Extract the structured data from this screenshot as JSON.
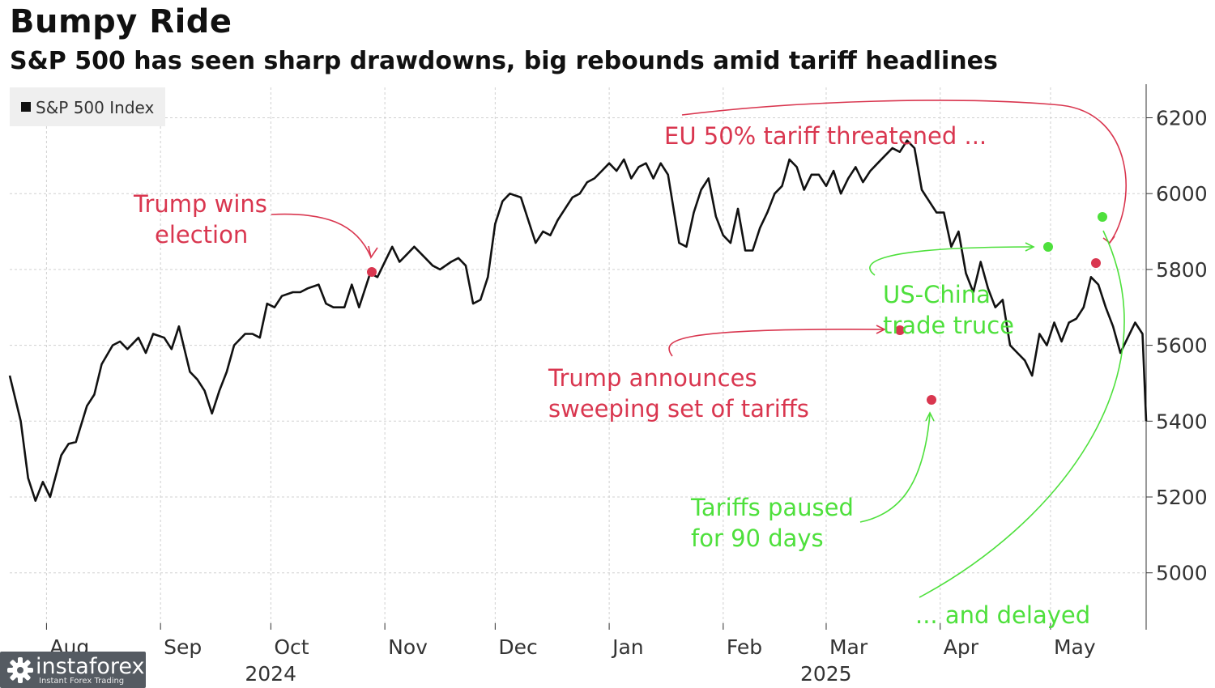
{
  "header": {
    "title": "Bumpy Ride",
    "subtitle": "S&P 500 has seen sharp drawdowns, big rebounds amid tariff headlines"
  },
  "watermark": {
    "brand": "instaforex",
    "tagline": "Instant Forex Trading"
  },
  "colors": {
    "line": "#111111",
    "negative": "#d9364f",
    "positive": "#4ee03c",
    "grid": "#d0d0d0"
  },
  "chart_data": {
    "type": "line",
    "title": "Bumpy Ride",
    "subtitle": "S&P 500 has seen sharp drawdowns, big rebounds amid tariff headlines",
    "legend": {
      "label": "S&P 500 Index",
      "placement": "top-left"
    },
    "grid": true,
    "ylim": [
      4850,
      6280
    ],
    "yticks": [
      5000,
      5200,
      5400,
      5600,
      5800,
      6000,
      6200
    ],
    "xlim": [
      "2024-07-22",
      "2025-05-27"
    ],
    "xticks": [
      {
        "label": "Aug",
        "date": "2024-08-01"
      },
      {
        "label": "Sep",
        "date": "2024-09-01"
      },
      {
        "label": "Oct",
        "date": "2024-10-01"
      },
      {
        "label": "Nov",
        "date": "2024-11-01"
      },
      {
        "label": "Dec",
        "date": "2024-12-01"
      },
      {
        "label": "Jan",
        "date": "2025-01-01"
      },
      {
        "label": "Feb",
        "date": "2025-02-01"
      },
      {
        "label": "Mar",
        "date": "2025-03-01"
      },
      {
        "label": "Apr",
        "date": "2025-04-01"
      },
      {
        "label": "May",
        "date": "2025-05-01"
      }
    ],
    "year_labels": [
      {
        "label": "2024",
        "date": "2024-10-01"
      },
      {
        "label": "2025",
        "date": "2025-03-01"
      }
    ],
    "series": [
      {
        "name": "S&P 500 Index",
        "points": [
          [
            "2024-07-22",
            5520
          ],
          [
            "2024-07-25",
            5400
          ],
          [
            "2024-07-27",
            5250
          ],
          [
            "2024-07-29",
            5190
          ],
          [
            "2024-07-31",
            5240
          ],
          [
            "2024-08-02",
            5200
          ],
          [
            "2024-08-05",
            5310
          ],
          [
            "2024-08-07",
            5340
          ],
          [
            "2024-08-09",
            5345
          ],
          [
            "2024-08-12",
            5440
          ],
          [
            "2024-08-14",
            5470
          ],
          [
            "2024-08-16",
            5550
          ],
          [
            "2024-08-19",
            5600
          ],
          [
            "2024-08-21",
            5610
          ],
          [
            "2024-08-23",
            5590
          ],
          [
            "2024-08-26",
            5620
          ],
          [
            "2024-08-28",
            5580
          ],
          [
            "2024-08-30",
            5630
          ],
          [
            "2024-09-02",
            5620
          ],
          [
            "2024-09-04",
            5590
          ],
          [
            "2024-09-06",
            5650
          ],
          [
            "2024-09-09",
            5530
          ],
          [
            "2024-09-11",
            5510
          ],
          [
            "2024-09-13",
            5480
          ],
          [
            "2024-09-15",
            5420
          ],
          [
            "2024-09-17",
            5480
          ],
          [
            "2024-09-19",
            5530
          ],
          [
            "2024-09-21",
            5600
          ],
          [
            "2024-09-24",
            5630
          ],
          [
            "2024-09-26",
            5630
          ],
          [
            "2024-09-28",
            5620
          ],
          [
            "2024-09-30",
            5710
          ],
          [
            "2024-10-02",
            5700
          ],
          [
            "2024-10-04",
            5730
          ],
          [
            "2024-10-07",
            5740
          ],
          [
            "2024-10-09",
            5740
          ],
          [
            "2024-10-11",
            5750
          ],
          [
            "2024-10-14",
            5760
          ],
          [
            "2024-10-16",
            5710
          ],
          [
            "2024-10-18",
            5700
          ],
          [
            "2024-10-21",
            5700
          ],
          [
            "2024-10-23",
            5760
          ],
          [
            "2024-10-25",
            5700
          ],
          [
            "2024-10-28",
            5790
          ],
          [
            "2024-10-30",
            5780
          ],
          [
            "2024-11-01",
            5820
          ],
          [
            "2024-11-03",
            5860
          ],
          [
            "2024-11-05",
            5820
          ],
          [
            "2024-11-07",
            5840
          ],
          [
            "2024-11-09",
            5860
          ],
          [
            "2024-11-12",
            5830
          ],
          [
            "2024-11-14",
            5810
          ],
          [
            "2024-11-16",
            5800
          ],
          [
            "2024-11-19",
            5820
          ],
          [
            "2024-11-21",
            5830
          ],
          [
            "2024-11-23",
            5810
          ],
          [
            "2024-11-25",
            5710
          ],
          [
            "2024-11-27",
            5720
          ],
          [
            "2024-11-29",
            5780
          ],
          [
            "2024-12-01",
            5920
          ],
          [
            "2024-12-03",
            5980
          ],
          [
            "2024-12-05",
            6000
          ],
          [
            "2024-12-08",
            5990
          ],
          [
            "2024-12-10",
            5930
          ],
          [
            "2024-12-12",
            5870
          ],
          [
            "2024-12-14",
            5900
          ],
          [
            "2024-12-16",
            5890
          ],
          [
            "2024-12-18",
            5930
          ],
          [
            "2024-12-20",
            5960
          ],
          [
            "2024-12-22",
            5990
          ],
          [
            "2024-12-24",
            6000
          ],
          [
            "2024-12-26",
            6030
          ],
          [
            "2024-12-28",
            6040
          ],
          [
            "2024-12-30",
            6060
          ],
          [
            "2025-01-01",
            6080
          ],
          [
            "2025-01-03",
            6060
          ],
          [
            "2025-01-05",
            6090
          ],
          [
            "2025-01-07",
            6040
          ],
          [
            "2025-01-09",
            6070
          ],
          [
            "2025-01-11",
            6080
          ],
          [
            "2025-01-13",
            6040
          ],
          [
            "2025-01-15",
            6080
          ],
          [
            "2025-01-17",
            6050
          ],
          [
            "2025-01-20",
            5870
          ],
          [
            "2025-01-22",
            5860
          ],
          [
            "2025-01-24",
            5950
          ],
          [
            "2025-01-26",
            6010
          ],
          [
            "2025-01-28",
            6040
          ],
          [
            "2025-01-30",
            5940
          ],
          [
            "2025-02-01",
            5890
          ],
          [
            "2025-02-03",
            5870
          ],
          [
            "2025-02-05",
            5960
          ],
          [
            "2025-02-07",
            5850
          ],
          [
            "2025-02-09",
            5850
          ],
          [
            "2025-02-11",
            5910
          ],
          [
            "2025-02-13",
            5950
          ],
          [
            "2025-02-15",
            6000
          ],
          [
            "2025-02-17",
            6020
          ],
          [
            "2025-02-19",
            6090
          ],
          [
            "2025-02-21",
            6070
          ],
          [
            "2025-02-23",
            6010
          ],
          [
            "2025-02-25",
            6050
          ],
          [
            "2025-02-27",
            6050
          ],
          [
            "2025-03-01",
            6020
          ],
          [
            "2025-03-03",
            6060
          ],
          [
            "2025-03-05",
            6000
          ],
          [
            "2025-03-07",
            6040
          ],
          [
            "2025-03-09",
            6070
          ],
          [
            "2025-03-11",
            6030
          ],
          [
            "2025-03-13",
            6060
          ],
          [
            "2025-03-15",
            6080
          ],
          [
            "2025-03-17",
            6100
          ],
          [
            "2025-03-19",
            6120
          ],
          [
            "2025-03-21",
            6110
          ],
          [
            "2025-03-23",
            6140
          ],
          [
            "2025-03-25",
            6120
          ],
          [
            "2025-03-27",
            6010
          ],
          [
            "2025-03-29",
            5980
          ],
          [
            "2025-03-31",
            5950
          ],
          [
            "2025-04-02",
            5950
          ],
          [
            "2025-04-04",
            5860
          ],
          [
            "2025-04-06",
            5900
          ],
          [
            "2025-04-08",
            5790
          ],
          [
            "2025-04-10",
            5740
          ],
          [
            "2025-04-12",
            5820
          ],
          [
            "2025-04-14",
            5750
          ],
          [
            "2025-04-16",
            5700
          ],
          [
            "2025-04-18",
            5720
          ],
          [
            "2025-04-20",
            5600
          ],
          [
            "2025-04-22",
            5580
          ],
          [
            "2025-04-24",
            5560
          ],
          [
            "2025-04-26",
            5520
          ],
          [
            "2025-04-28",
            5630
          ],
          [
            "2025-04-30",
            5600
          ],
          [
            "2025-05-02",
            5660
          ],
          [
            "2025-05-04",
            5610
          ],
          [
            "2025-05-06",
            5660
          ],
          [
            "2025-05-08",
            5670
          ],
          [
            "2025-05-10",
            5700
          ],
          [
            "2025-05-12",
            5780
          ],
          [
            "2025-05-14",
            5760
          ],
          [
            "2025-05-16",
            5700
          ],
          [
            "2025-05-18",
            5650
          ],
          [
            "2025-05-20",
            5580
          ],
          [
            "2025-05-22",
            5620
          ],
          [
            "2025-05-24",
            5660
          ],
          [
            "2025-05-26",
            5630
          ],
          [
            "2025-05-27",
            5400
          ]
        ]
      }
    ],
    "annotations": [
      {
        "text": "Trump wins election",
        "color": "negative"
      },
      {
        "text": "EU 50% tariff threatened ...",
        "color": "negative"
      },
      {
        "text": "US-China trade truce",
        "color": "positive"
      },
      {
        "text": "Trump announces sweeping set of tariffs",
        "color": "negative"
      },
      {
        "text": "Tariffs paused for 90 days",
        "color": "positive"
      },
      {
        "text": "... and delayed",
        "color": "positive"
      }
    ]
  },
  "labels": {
    "ann_election_1": "Trump wins",
    "ann_election_2": "election",
    "ann_eu": "EU 50% tariff threatened ...",
    "ann_truce_1": "US-China",
    "ann_truce_2": "trade truce",
    "ann_tariffs_1": "Trump announces",
    "ann_tariffs_2": "sweeping set of tariffs",
    "ann_paused_1": "Tariffs paused",
    "ann_paused_2": "for 90 days",
    "ann_delayed": "... and delayed"
  }
}
